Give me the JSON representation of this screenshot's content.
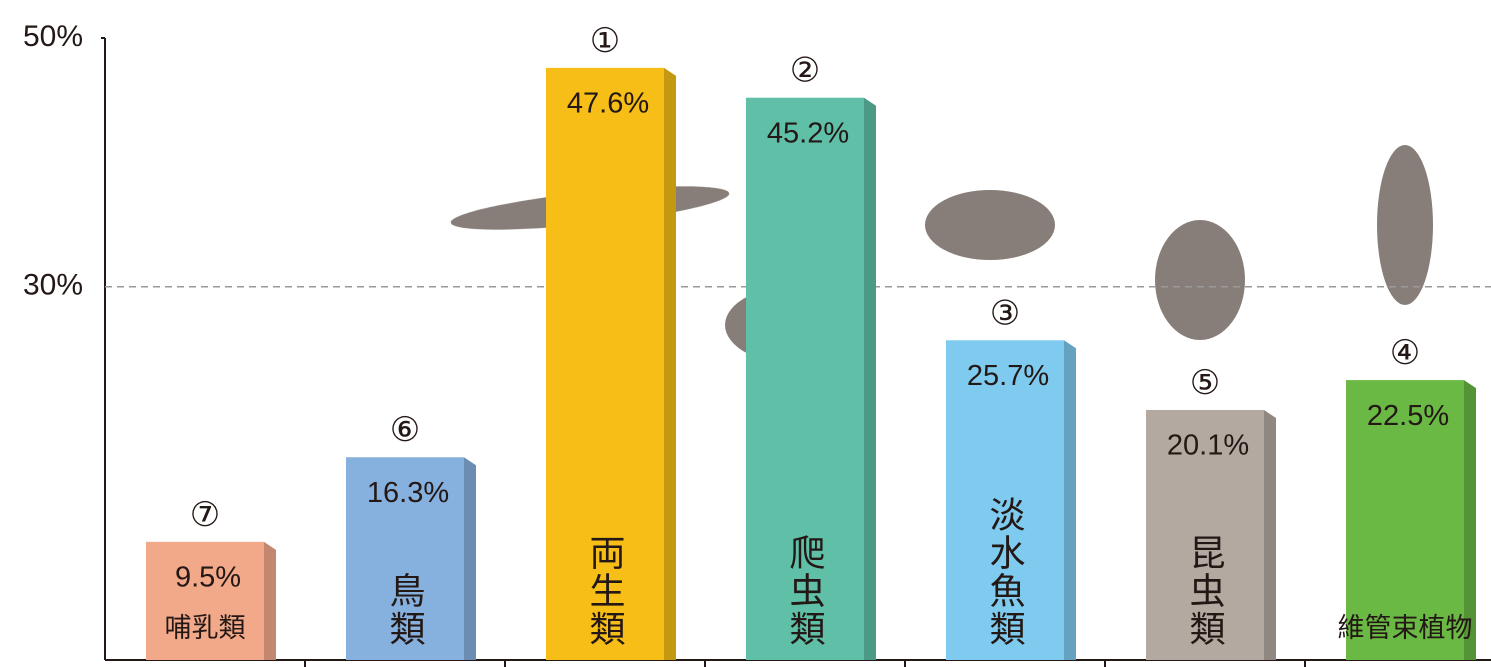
{
  "chart_data": {
    "type": "bar",
    "categories": [
      "哺乳類",
      "鳥類",
      "両生類",
      "爬虫類",
      "淡水魚類",
      "昆虫類",
      "維管束植物"
    ],
    "ranks": [
      "⑦",
      "⑥",
      "①",
      "②",
      "③",
      "⑤",
      "④"
    ],
    "values": [
      9.5,
      16.3,
      47.6,
      45.2,
      25.7,
      20.1,
      22.5
    ],
    "value_labels": [
      "9.5%",
      "16.3%",
      "47.6%",
      "45.2%",
      "25.7%",
      "20.1%",
      "22.5%"
    ],
    "colors": [
      "#f2a98a",
      "#86b0dd",
      "#f6be17",
      "#5fbfa7",
      "#7ecbef",
      "#b3a9a0",
      "#6ab944"
    ],
    "ylim": [
      0,
      50
    ],
    "yticks": [
      {
        "value": 30,
        "label": "30%"
      },
      {
        "value": 50,
        "label": "50%"
      }
    ]
  }
}
